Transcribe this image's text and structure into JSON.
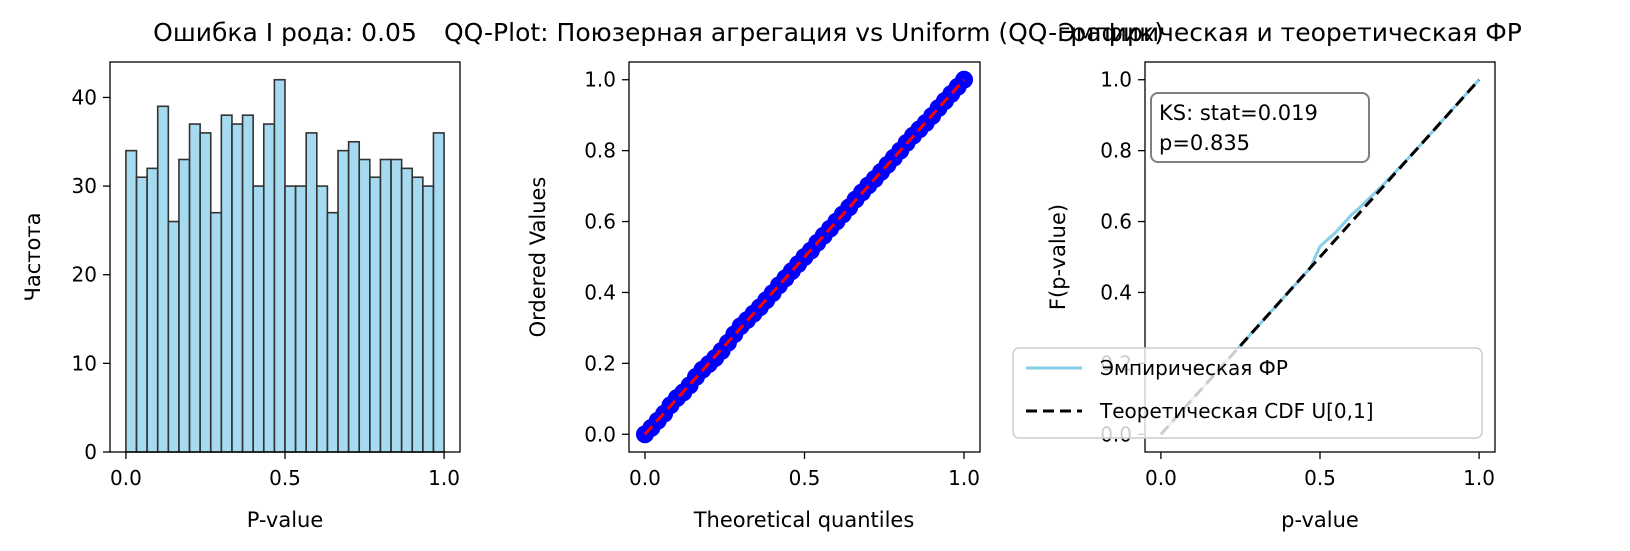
{
  "chart_data": [
    {
      "type": "bar",
      "subtype": "histogram",
      "title": "Ошибка I рода: 0.05",
      "xlabel": "P-value",
      "ylabel": "Частота",
      "xlim": [
        -0.05,
        1.05
      ],
      "ylim": [
        0,
        44
      ],
      "xticks": [
        "0.0",
        "0.5",
        "1.0"
      ],
      "yticks": [
        "0",
        "10",
        "20",
        "30",
        "40"
      ],
      "bin_start": 0.0,
      "bin_width": 0.03333,
      "values": [
        34,
        31,
        32,
        39,
        26,
        33,
        37,
        36,
        27,
        38,
        37,
        38,
        30,
        37,
        42,
        30,
        30,
        36,
        30,
        27,
        34,
        35,
        33,
        31,
        33,
        33,
        32,
        31,
        30,
        36
      ],
      "colors": {
        "fill": "#87ceeb",
        "edge": "#333333"
      }
    },
    {
      "type": "scatter",
      "title": "QQ-Plot: Поюзерная агрегация vs Uniform (QQ-график)",
      "xlabel": "Theoretical quantiles",
      "ylabel": "Ordered Values",
      "xlim": [
        -0.05,
        1.05
      ],
      "ylim": [
        -0.05,
        1.05
      ],
      "xticks": [
        "0.0",
        "0.5",
        "1.0"
      ],
      "yticks": [
        "0.0",
        "0.2",
        "0.4",
        "0.6",
        "0.8",
        "1.0"
      ],
      "x": [
        0.0,
        0.02,
        0.04,
        0.06,
        0.08,
        0.1,
        0.12,
        0.14,
        0.16,
        0.18,
        0.2,
        0.22,
        0.24,
        0.26,
        0.28,
        0.3,
        0.32,
        0.34,
        0.36,
        0.38,
        0.4,
        0.42,
        0.44,
        0.46,
        0.48,
        0.5,
        0.52,
        0.54,
        0.56,
        0.58,
        0.6,
        0.62,
        0.64,
        0.66,
        0.68,
        0.7,
        0.72,
        0.74,
        0.76,
        0.78,
        0.8,
        0.82,
        0.84,
        0.86,
        0.88,
        0.9,
        0.92,
        0.94,
        0.96,
        0.98,
        1.0
      ],
      "y": [
        0.0,
        0.018,
        0.038,
        0.058,
        0.082,
        0.102,
        0.118,
        0.138,
        0.162,
        0.182,
        0.198,
        0.215,
        0.235,
        0.258,
        0.282,
        0.305,
        0.322,
        0.34,
        0.358,
        0.378,
        0.398,
        0.42,
        0.44,
        0.46,
        0.48,
        0.5,
        0.518,
        0.54,
        0.56,
        0.58,
        0.6,
        0.62,
        0.64,
        0.662,
        0.682,
        0.702,
        0.72,
        0.74,
        0.76,
        0.78,
        0.8,
        0.822,
        0.842,
        0.86,
        0.878,
        0.898,
        0.92,
        0.94,
        0.96,
        0.98,
        1.0
      ],
      "reference_line": {
        "from": [
          0,
          0
        ],
        "to": [
          1,
          1
        ],
        "style": "dashed",
        "color": "#ff0000"
      },
      "colors": {
        "points": "#0000ff"
      }
    },
    {
      "type": "line",
      "title": "Эмпирическая и теоретическая ФР",
      "xlabel": "p-value",
      "ylabel": "F(p-value)",
      "xlim": [
        -0.05,
        1.05
      ],
      "ylim": [
        -0.05,
        1.05
      ],
      "xticks": [
        "0.0",
        "0.5",
        "1.0"
      ],
      "yticks": [
        "0.0",
        "0.2",
        "0.4",
        "0.6",
        "0.8",
        "1.0"
      ],
      "series": [
        {
          "name": "Эмпирическая ФР",
          "color": "#87ceeb",
          "style": "solid",
          "x": [
            0.0,
            0.1,
            0.2,
            0.3,
            0.4,
            0.47,
            0.5,
            0.55,
            0.6,
            0.62,
            0.7,
            0.8,
            0.9,
            1.0
          ],
          "y": [
            0.0,
            0.1,
            0.2,
            0.3,
            0.4,
            0.47,
            0.53,
            0.57,
            0.62,
            0.635,
            0.705,
            0.8,
            0.9,
            1.0
          ]
        },
        {
          "name": "Теоретическая CDF U[0,1]",
          "color": "#000000",
          "style": "dashed",
          "x": [
            0.0,
            1.0
          ],
          "y": [
            0.0,
            1.0
          ]
        }
      ],
      "annotation": {
        "line1": "KS: stat=0.019",
        "line2": "p=0.835"
      },
      "legend_position": "lower-right"
    }
  ]
}
